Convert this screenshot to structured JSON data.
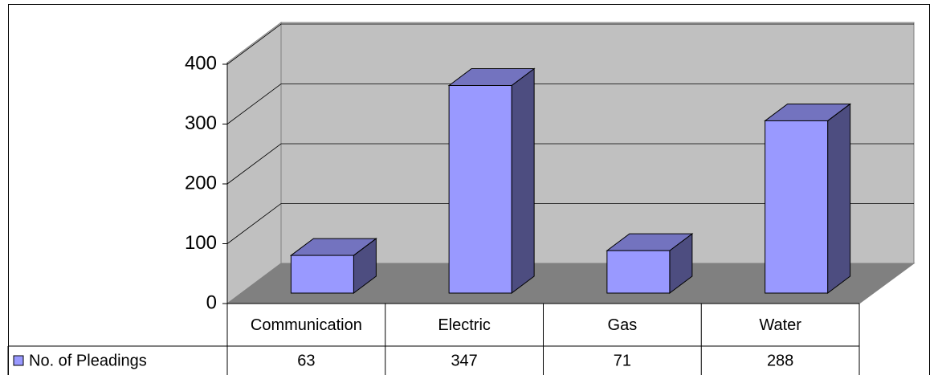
{
  "chart_data": {
    "type": "bar",
    "categories": [
      "Communication",
      "Electric",
      "Gas",
      "Water"
    ],
    "series": [
      {
        "name": "No. of Pleadings",
        "color": "#9999ff",
        "values": [
          63,
          347,
          71,
          288
        ]
      }
    ],
    "ylim": [
      0,
      400
    ],
    "yticks": [
      0,
      100,
      200,
      300,
      400
    ],
    "grid": true
  }
}
